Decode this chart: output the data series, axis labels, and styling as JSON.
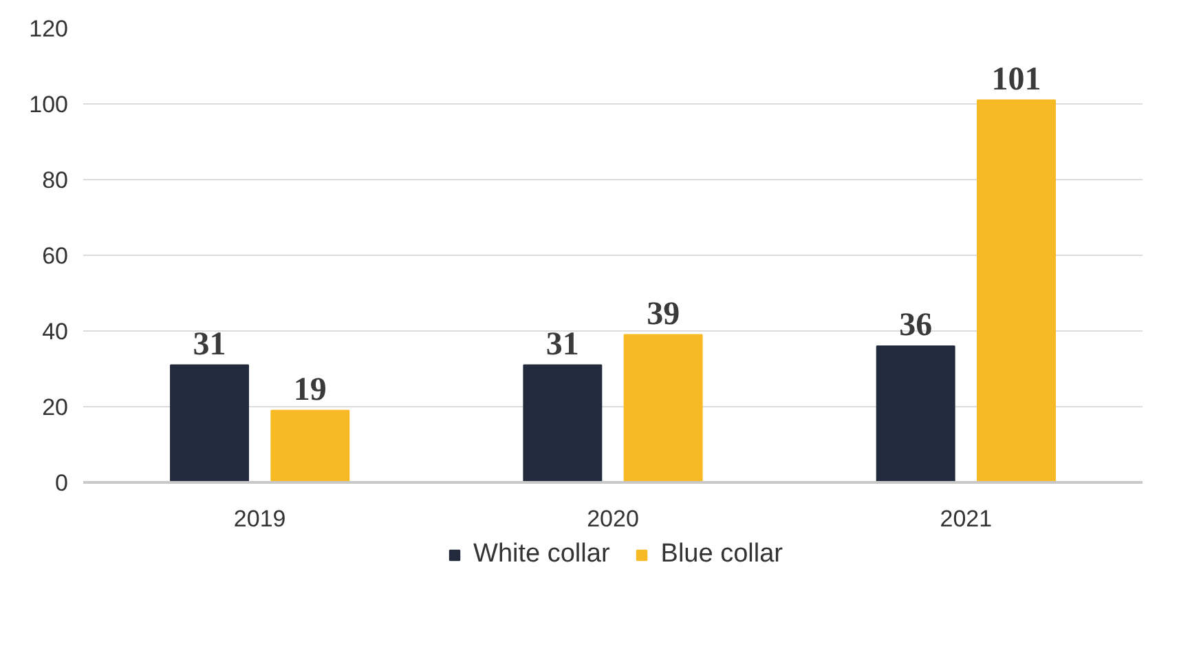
{
  "chart_data": {
    "type": "bar",
    "categories": [
      "2019",
      "2020",
      "2021"
    ],
    "series": [
      {
        "name": "White collar",
        "color": "#222a3d",
        "values": [
          31,
          31,
          36
        ]
      },
      {
        "name": "Blue collar",
        "color": "#f7b924",
        "values": [
          19,
          39,
          101
        ]
      }
    ],
    "ylim": [
      0,
      120
    ],
    "yticks": [
      0,
      20,
      40,
      60,
      80,
      100,
      120
    ],
    "grid": "y",
    "legend": "bottom",
    "data_labels": true
  }
}
